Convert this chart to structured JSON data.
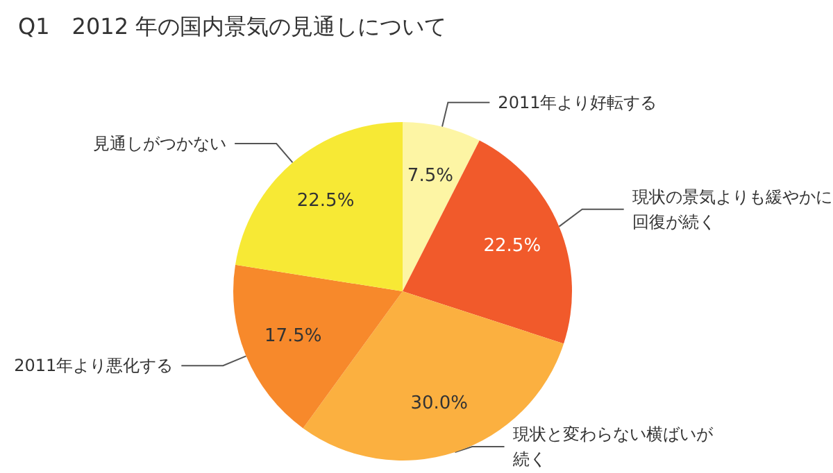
{
  "chart_data": {
    "type": "pie",
    "title": "Q1　2012 年の国内景気の見通しについて",
    "categories": [
      "2011年より好転する",
      "現状の景気よりも緩やかに回復が続く",
      "現状と変わらない横ばいが続く",
      "2011年より悪化する",
      "見通しがつかない"
    ],
    "values": [
      7.5,
      22.5,
      30.0,
      17.5,
      22.5
    ],
    "value_labels": [
      "7.5%",
      "22.5%",
      "30.0%",
      "17.5%",
      "22.5%"
    ],
    "colors": [
      "#fdf5a4",
      "#f15a2b",
      "#fbb040",
      "#f7892b",
      "#f7e935"
    ]
  }
}
